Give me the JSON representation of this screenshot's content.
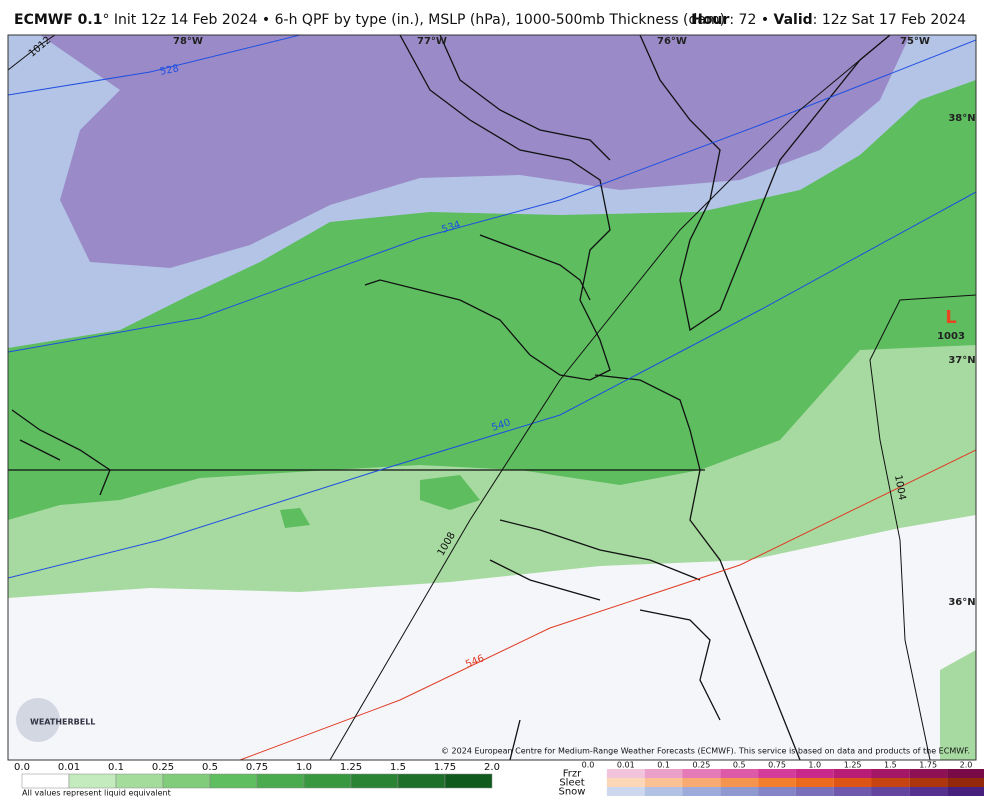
{
  "header": {
    "model": "ECMWF 0.1",
    "description": "° Init 12z 14 Feb 2024 • 6-h QPF by type (in.), MSLP (hPa), 1000-500mb Thickness (dam)",
    "hour_label": "Hour",
    "hour": ": 72 • ",
    "valid_label": "Valid",
    "valid": ": 12z Sat 17 Feb 2024"
  },
  "map": {
    "longitudes": [
      "78°W",
      "77°W",
      "76°W",
      "75°W"
    ],
    "latitudes": [
      "38°N",
      "37°N",
      "36°N"
    ],
    "thickness_labels": [
      "528",
      "534",
      "540",
      "546"
    ],
    "pressure_labels": [
      "1012",
      "1008",
      "1004"
    ],
    "low": {
      "symbol": "L",
      "pressure": "1003"
    },
    "logo": "WEATHERBELL",
    "copyright": "© 2024 European Centre for Medium-Range Weather Forecasts (ECMWF). This service is based on data and products of the ECMWF."
  },
  "legend": {
    "rain_ticks": [
      "0.0",
      "0.01",
      "0.1",
      "0.25",
      "0.5",
      "0.75",
      "1.0",
      "1.25",
      "1.5",
      "1.75",
      "2.0"
    ],
    "rain_colors": [
      "#ffffff",
      "#c3ebbd",
      "#a3dc9b",
      "#80cc7a",
      "#5ebe60",
      "#49ab4d",
      "#389840",
      "#2a8434",
      "#1d6f29",
      "#105a1d",
      "#064516"
    ],
    "type_ticks": [
      "0.0",
      "0.01",
      "0.1",
      "0.25",
      "0.5",
      "0.75",
      "1.0",
      "1.25",
      "1.5",
      "1.75",
      "2.0"
    ],
    "types": [
      {
        "name": "Frzr",
        "colors": [
          "#f2c4dc",
          "#eaa0c8",
          "#e47ab8",
          "#dd5aa8",
          "#d33c98",
          "#c8298a",
          "#b81e78",
          "#a41766",
          "#8e1156",
          "#780b47"
        ]
      },
      {
        "name": "Sleet",
        "colors": [
          "#fbd7b8",
          "#f9c194",
          "#f7ab72",
          "#f5944f",
          "#f47e30",
          "#ec6a1e",
          "#dc5516",
          "#c54412",
          "#ad360e",
          "#93290a"
        ]
      },
      {
        "name": "Snow",
        "colors": [
          "#cdd8ee",
          "#b3c1e5",
          "#9eabda",
          "#8f98cf",
          "#8584c6",
          "#7c6fba",
          "#7059ac",
          "#63449e",
          "#55308e",
          "#47207d"
        ]
      }
    ],
    "note": "All values represent liquid equivalent"
  }
}
